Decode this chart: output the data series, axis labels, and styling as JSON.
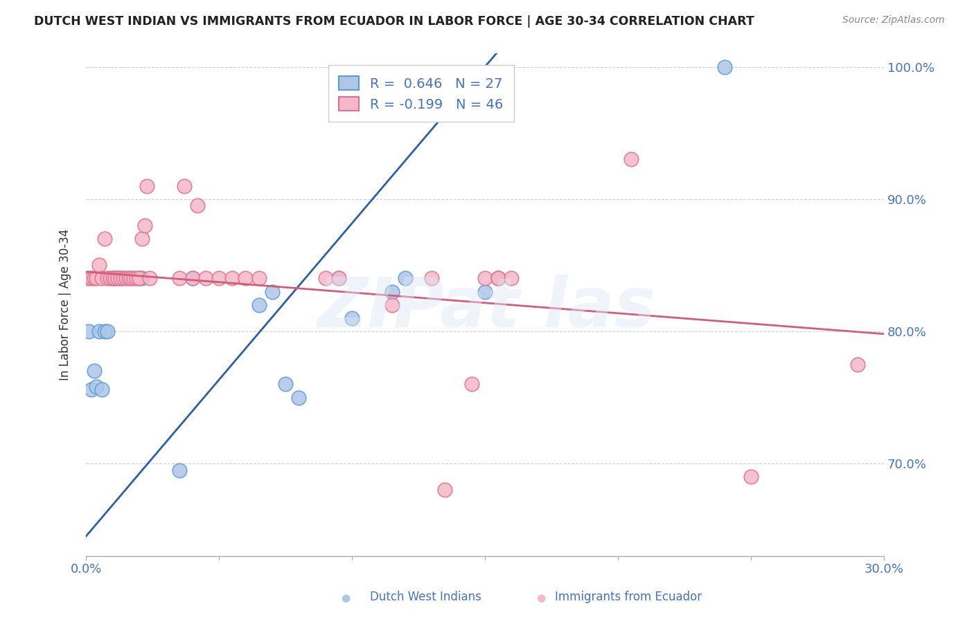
{
  "title": "DUTCH WEST INDIAN VS IMMIGRANTS FROM ECUADOR IN LABOR FORCE | AGE 30-34 CORRELATION CHART",
  "source": "Source: ZipAtlas.com",
  "ylabel": "In Labor Force | Age 30-34",
  "xmin": 0.0,
  "xmax": 0.3,
  "ymin": 0.63,
  "ymax": 1.01,
  "yticks": [
    0.7,
    0.8,
    0.9,
    1.0
  ],
  "xticks": [
    0.0,
    0.05,
    0.1,
    0.15,
    0.2,
    0.25,
    0.3
  ],
  "blue_label": "Dutch West Indians",
  "pink_label": "Immigrants from Ecuador",
  "blue_R": 0.646,
  "blue_N": 27,
  "pink_R": -0.199,
  "pink_N": 46,
  "blue_scatter_color": "#aec6e8",
  "blue_edge_color": "#5b9bd5",
  "pink_scatter_color": "#f4b8c8",
  "pink_edge_color": "#e07090",
  "blue_line_color": "#2b5fac",
  "pink_line_color": "#d45c7a",
  "text_color": "#4472c4",
  "grid_color": "#d0d0d0",
  "blue_x": [
    0.001,
    0.002,
    0.003,
    0.004,
    0.005,
    0.006,
    0.007,
    0.008,
    0.01,
    0.011,
    0.012,
    0.013,
    0.02,
    0.021,
    0.035,
    0.04,
    0.065,
    0.07,
    0.075,
    0.08,
    0.095,
    0.1,
    0.115,
    0.12,
    0.15,
    0.155,
    0.24
  ],
  "blue_y": [
    0.8,
    0.756,
    0.77,
    0.758,
    0.8,
    0.756,
    0.8,
    0.8,
    0.84,
    0.84,
    0.84,
    0.84,
    0.84,
    0.84,
    0.695,
    0.84,
    0.82,
    0.83,
    0.76,
    0.75,
    0.84,
    0.81,
    0.83,
    0.84,
    0.83,
    0.84,
    1.0
  ],
  "pink_x": [
    0.001,
    0.002,
    0.003,
    0.004,
    0.005,
    0.006,
    0.007,
    0.008,
    0.009,
    0.01,
    0.011,
    0.012,
    0.013,
    0.014,
    0.015,
    0.016,
    0.017,
    0.018,
    0.019,
    0.02,
    0.021,
    0.022,
    0.023,
    0.024,
    0.035,
    0.037,
    0.04,
    0.042,
    0.045,
    0.05,
    0.055,
    0.06,
    0.065,
    0.09,
    0.095,
    0.115,
    0.13,
    0.135,
    0.145,
    0.15,
    0.155,
    0.155,
    0.16,
    0.205,
    0.25,
    0.29
  ],
  "pink_y": [
    0.84,
    0.84,
    0.84,
    0.84,
    0.85,
    0.84,
    0.87,
    0.84,
    0.84,
    0.84,
    0.84,
    0.84,
    0.84,
    0.84,
    0.84,
    0.84,
    0.84,
    0.84,
    0.84,
    0.84,
    0.87,
    0.88,
    0.91,
    0.84,
    0.84,
    0.91,
    0.84,
    0.895,
    0.84,
    0.84,
    0.84,
    0.84,
    0.84,
    0.84,
    0.84,
    0.82,
    0.84,
    0.68,
    0.76,
    0.84,
    0.84,
    0.84,
    0.84,
    0.93,
    0.69,
    0.775
  ]
}
